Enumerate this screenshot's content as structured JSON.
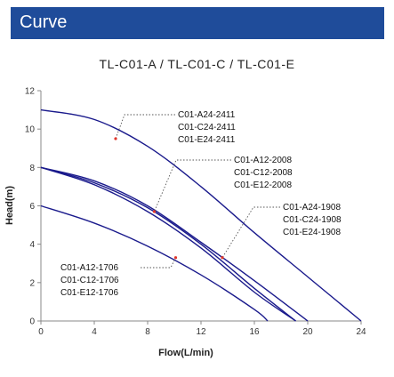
{
  "header": {
    "title": "Curve"
  },
  "chart_data": {
    "type": "line",
    "title": "TL-C01-A / TL-C01-C / TL-C01-E",
    "xlabel": "Flow(L/min)",
    "ylabel": "Head(m)",
    "xlim": [
      0,
      24
    ],
    "ylim": [
      0,
      12
    ],
    "xticks": [
      0,
      4,
      8,
      12,
      16,
      20,
      24
    ],
    "yticks": [
      0,
      2,
      4,
      6,
      8,
      10,
      12
    ],
    "grid": false,
    "line_color": "#1a1a8c",
    "series": [
      {
        "x": [
          0,
          4,
          8,
          12,
          16,
          20,
          24
        ],
        "y": [
          11.0,
          10.5,
          9.1,
          7.0,
          4.6,
          2.3,
          0.0
        ]
      },
      {
        "x": [
          0,
          4,
          8,
          12,
          16,
          19.1
        ],
        "y": [
          8.0,
          7.2,
          5.9,
          4.0,
          1.7,
          0.0
        ]
      },
      {
        "x": [
          0,
          4,
          8,
          12,
          16,
          19.1
        ],
        "y": [
          8.0,
          7.1,
          5.7,
          3.8,
          1.5,
          0.0
        ]
      },
      {
        "x": [
          0,
          4,
          8,
          12,
          16,
          20
        ],
        "y": [
          8.0,
          7.3,
          6.0,
          4.1,
          2.1,
          0.0
        ]
      },
      {
        "x": [
          0,
          4,
          8,
          12,
          16,
          17
        ],
        "y": [
          6.0,
          5.1,
          3.9,
          2.4,
          0.6,
          0.0
        ]
      }
    ],
    "annotations": [
      {
        "lines": [
          "C01-A24-2411",
          "C01-C24-2411",
          "C01-E24-2411"
        ],
        "point": [
          5.6,
          9.5
        ]
      },
      {
        "lines": [
          "C01-A12-2008",
          "C01-C12-2008",
          "C01-E12-2008"
        ],
        "point": [
          8.5,
          5.7
        ]
      },
      {
        "lines": [
          "C01-A24-1908",
          "C01-C24-1908",
          "C01-E24-1908"
        ],
        "point": [
          13.6,
          3.3
        ]
      },
      {
        "lines": [
          "C01-A12-1706",
          "C01-C12-1706",
          "C01-E12-1706"
        ],
        "point": [
          10.1,
          3.3
        ]
      }
    ]
  }
}
